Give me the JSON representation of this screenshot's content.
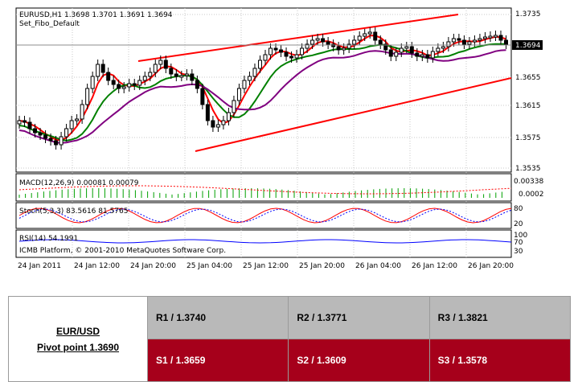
{
  "chart": {
    "title": "EURUSD,H1  1.3698 1.3701 1.3691 1.3694",
    "subtitle": "Set_Fibo_Default",
    "current_price": "1.3694",
    "price_ticks": [
      "1.3735",
      "1.3694",
      "1.3655",
      "1.3615",
      "1.3575",
      "1.3535"
    ],
    "time_labels": [
      "24 Jan 2011",
      "24 Jan 12:00",
      "24 Jan 20:00",
      "25 Jan 04:00",
      "25 Jan 12:00",
      "25 Jan 20:00",
      "26 Jan 04:00",
      "26 Jan 12:00",
      "26 Jan 20:00"
    ],
    "macd_label": "MACD(12,26,9) 0.00081 0.00079",
    "macd_ticks": [
      "0.00338",
      "0.0002"
    ],
    "stoch_label": "Stoch(5,3,3) 83.5616 81.5765",
    "stoch_ticks": [
      "80",
      "20"
    ],
    "rsi_label": "RSI(14) 54.1991",
    "rsi_ticks": [
      "100",
      "70",
      "30"
    ],
    "platform_text": "ICMB Platform, © 2001-2010 MetaQuotes Software Corp.",
    "colors": {
      "candle": "#000000",
      "ma_fast": "#ff0000",
      "ma_mid": "#008000",
      "ma_slow": "#800080",
      "channel": "#ff0000",
      "macd_hist": "#00a000",
      "macd_signal": "#ff0000",
      "stoch_main": "#ff0000",
      "stoch_signal": "#0000ff",
      "rsi": "#0000ff"
    }
  },
  "pivot": {
    "pair": "EUR/USD",
    "pivot_label": "Pivot point 1.3690",
    "resistance": [
      "R1 / 1.3740",
      "R2 / 1.3771",
      "R3 / 1.3821"
    ],
    "support": [
      "S1 / 1.3659",
      "S2 / 1.3609",
      "S3 / 1.3578"
    ],
    "colors": {
      "resistance_bg": "#b9b9b9",
      "support_bg": "#a6001b",
      "support_text": "#ffffff"
    }
  }
}
